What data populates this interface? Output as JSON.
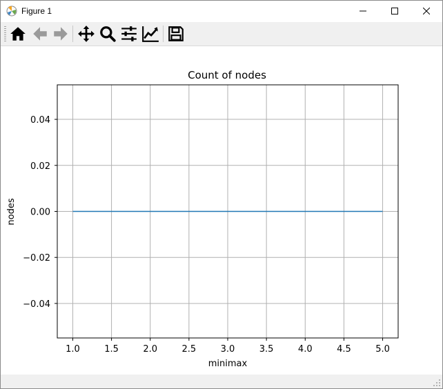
{
  "window": {
    "title": "Figure 1",
    "controls": [
      "minimize",
      "maximize",
      "close"
    ]
  },
  "toolbar": {
    "buttons": [
      {
        "name": "home",
        "icon": "home-icon"
      },
      {
        "name": "back",
        "icon": "arrow-left-icon"
      },
      {
        "name": "forward",
        "icon": "arrow-right-icon"
      },
      {
        "name": "pan",
        "icon": "move-icon"
      },
      {
        "name": "zoom",
        "icon": "magnifier-icon"
      },
      {
        "name": "configure-subplots",
        "icon": "sliders-icon"
      },
      {
        "name": "edit-axis",
        "icon": "line-chart-icon"
      },
      {
        "name": "save",
        "icon": "floppy-disk-icon"
      }
    ]
  },
  "status": {
    "text": ""
  },
  "chart_data": {
    "type": "line",
    "title": "Count of nodes",
    "xlabel": "minimax",
    "ylabel": "nodes",
    "xlim": [
      0.8,
      5.2
    ],
    "ylim": [
      -0.055,
      0.055
    ],
    "xticks": [
      1.0,
      1.5,
      2.0,
      2.5,
      3.0,
      3.5,
      4.0,
      4.5,
      5.0
    ],
    "xtick_labels": [
      "1.0",
      "1.5",
      "2.0",
      "2.5",
      "3.0",
      "3.5",
      "4.0",
      "4.5",
      "5.0"
    ],
    "yticks": [
      -0.04,
      -0.02,
      0.0,
      0.02,
      0.04
    ],
    "ytick_labels": [
      "−0.04",
      "−0.02",
      "0.00",
      "0.02",
      "0.04"
    ],
    "grid": true,
    "series": [
      {
        "x": [
          1,
          2,
          3,
          4,
          5
        ],
        "values": [
          0,
          0,
          0,
          0,
          0
        ],
        "color": "#1f77b4"
      }
    ]
  },
  "colors": {
    "line": "#1f77b4",
    "grid": "#b0b0b0",
    "axes": "#000000"
  }
}
